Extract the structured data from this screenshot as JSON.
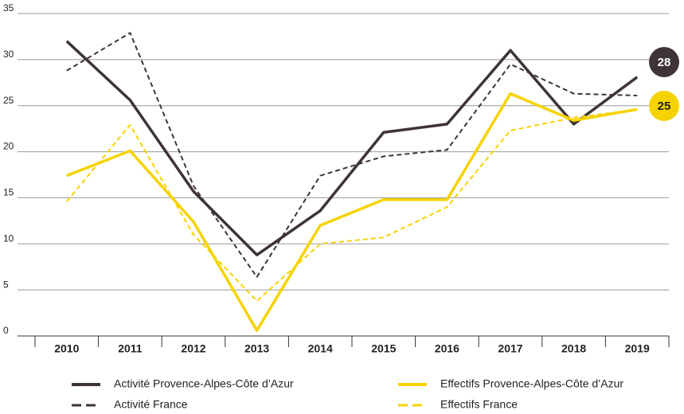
{
  "chart_data": {
    "type": "line",
    "categories": [
      "2010",
      "2011",
      "2012",
      "2013",
      "2014",
      "2015",
      "2016",
      "2017",
      "2018",
      "2019"
    ],
    "series": [
      {
        "name": "Activité Provence-Alpes-Côte d’Azur",
        "color": "#3f3435",
        "dashed": false,
        "end_label": "28",
        "values": [
          32,
          25.6,
          15.7,
          8.8,
          13.6,
          22.1,
          23,
          31,
          23,
          28.1
        ]
      },
      {
        "name": "Activité France",
        "color": "#3f3435",
        "dashed": true,
        "values": [
          28.8,
          32.9,
          16.3,
          6.4,
          17.4,
          19.5,
          20.2,
          29.5,
          26.3,
          26.1
        ]
      },
      {
        "name": "Effectifs Provence-Alpes-Côte d’Azur",
        "color": "#f5d300",
        "dashed": false,
        "end_label": "25",
        "values": [
          17.4,
          20.1,
          12.4,
          0.6,
          12,
          14.8,
          14.8,
          26.3,
          23.4,
          24.6
        ]
      },
      {
        "name": "Effectifs France",
        "color": "#f5d300",
        "dashed": true,
        "values": [
          14.6,
          22.9,
          11,
          3.8,
          10,
          10.7,
          14,
          22.3,
          23.7,
          24.6
        ]
      }
    ],
    "ylim": [
      0,
      35
    ],
    "yticks": [
      0,
      5,
      10,
      15,
      20,
      25,
      30,
      35
    ],
    "grid": true
  }
}
